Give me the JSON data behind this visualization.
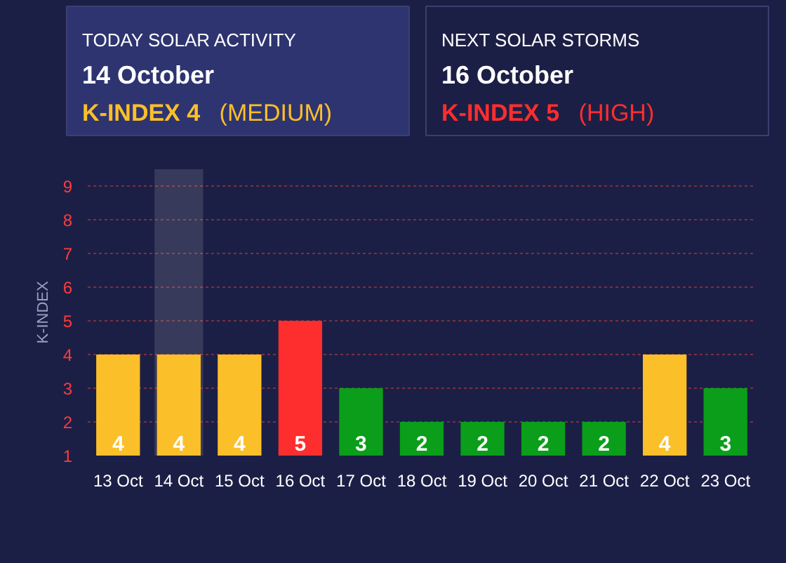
{
  "chart_data": [
    {
      "type": "other",
      "title": "TODAY SOLAR ACTIVITY",
      "subtitle": "14 October",
      "annotations": [
        "K-INDEX 4",
        "(MEDIUM)"
      ]
    },
    {
      "type": "other",
      "title": "NEXT SOLAR STORMS",
      "subtitle": "16 October",
      "annotations": [
        "K-INDEX 5",
        "(HIGH)"
      ]
    },
    {
      "type": "bar",
      "ylabel": "K-INDEX",
      "categories": [
        "13 Oct",
        "14 Oct",
        "15 Oct",
        "16 Oct",
        "17 Oct",
        "18 Oct",
        "19 Oct",
        "20 Oct",
        "21 Oct",
        "22 Oct",
        "23 Oct"
      ],
      "values": [
        4,
        4,
        4,
        5,
        3,
        2,
        2,
        2,
        2,
        4,
        3
      ],
      "colors": [
        "#fbbf2a",
        "#fbbf2a",
        "#fbbf2a",
        "#ff2e2e",
        "#0a9e1a",
        "#0a9e1a",
        "#0a9e1a",
        "#0a9e1a",
        "#0a9e1a",
        "#fbbf2a",
        "#0a9e1a"
      ],
      "ylim": [
        1,
        9.5
      ],
      "yticks": [
        1,
        2,
        3,
        4,
        5,
        6,
        7,
        8,
        9
      ],
      "grid": "y",
      "data_labels": true,
      "bands": [
        {
          "axis": "x",
          "from": "14 Oct",
          "to": "14 Oct",
          "color": "#ffffff"
        }
      ]
    }
  ]
}
